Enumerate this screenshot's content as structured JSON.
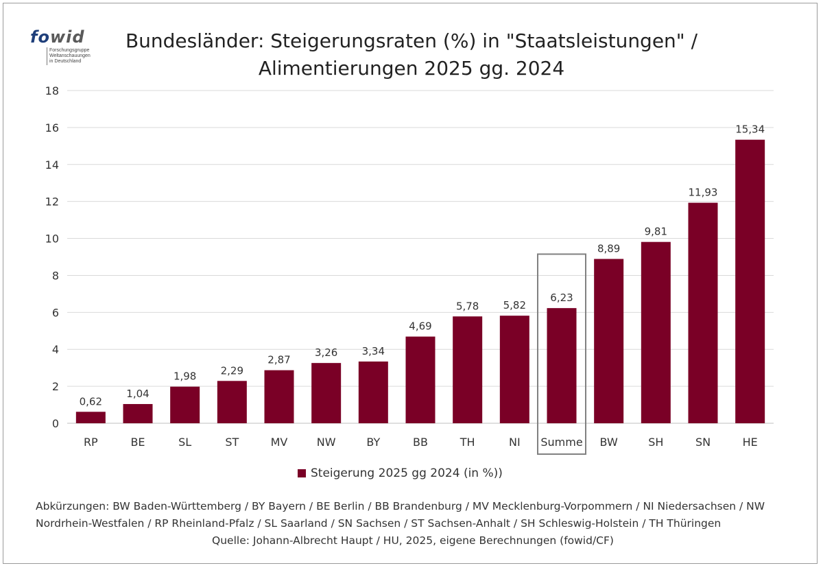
{
  "logo": {
    "wordmark_a": "fo",
    "wordmark_b": "wid",
    "subline_1": "Forschungsgruppe",
    "subline_2": "Weltanschauungen",
    "subline_3": "in Deutschland"
  },
  "colors": {
    "bar": "#7a0026",
    "grid": "#d9d9d9",
    "highlight_box": "#808080"
  },
  "chart_data": {
    "type": "bar",
    "title_line_1": "Bundesländer: Steigerungsraten (%) in \"Staatsleistungen\" /",
    "title_line_2": "Alimentierungen 2025 gg. 2024",
    "categories": [
      "RP",
      "BE",
      "SL",
      "ST",
      "MV",
      "NW",
      "BY",
      "BB",
      "TH",
      "NI",
      "Summe",
      "BW",
      "SH",
      "SN",
      "HE"
    ],
    "series": [
      {
        "name": "Steigerung 2025 gg 2024 (in %))",
        "values": [
          0.62,
          1.04,
          1.98,
          2.29,
          2.87,
          3.26,
          3.34,
          4.69,
          5.78,
          5.82,
          6.23,
          8.89,
          9.81,
          11.93,
          15.34
        ],
        "data_labels": [
          "0,62",
          "1,04",
          "1,98",
          "2,29",
          "2,87",
          "3,26",
          "3,34",
          "4,69",
          "5,78",
          "5,82",
          "6,23",
          "8,89",
          "9,81",
          "11,93",
          "15,34"
        ]
      }
    ],
    "highlighted_category": "Summe",
    "ylim": [
      0,
      18
    ],
    "yticks": [
      0,
      2,
      4,
      6,
      8,
      10,
      12,
      14,
      16,
      18
    ],
    "grid": true,
    "legend_position": "bottom"
  },
  "footnote": {
    "line_1": "Abkürzungen: BW Baden-Württemberg / BY Bayern / BE Berlin / BB Brandenburg / MV Mecklenburg-Vorpommern / NI Niedersachsen / NW",
    "line_2": "Nordrhein-Westfalen / RP Rheinland-Pfalz / SL Saarland / SN Sachsen / ST Sachsen-Anhalt / SH Schleswig-Holstein / TH Thüringen",
    "source": "Quelle: Johann-Albrecht Haupt / HU, 2025, eigene Berechnungen (fowid/CF)"
  }
}
